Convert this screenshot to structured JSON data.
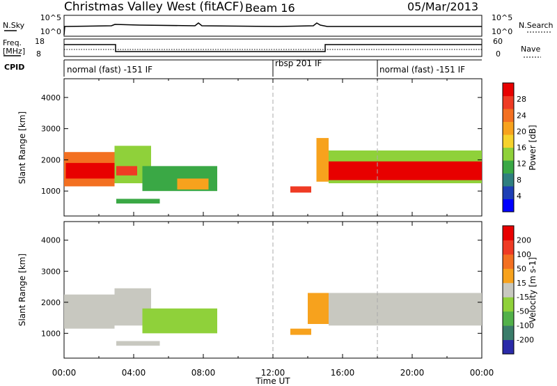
{
  "header": {
    "station": "Christmas Valley West (fitACF)",
    "beam": "Beam 16",
    "date": "05/Mar/2013"
  },
  "nsky": {
    "left_label": "N.Sky",
    "right_label": "N.Search",
    "left_ticks": [
      "10^5",
      "10^0"
    ],
    "right_ticks": [
      "10^5",
      "10^0"
    ]
  },
  "freq": {
    "left_label_1": "Freq.",
    "left_label_2": "[MHz]",
    "right_label": "Nave",
    "left_ticks": [
      "18",
      "8"
    ],
    "right_ticks": [
      "60",
      "0"
    ]
  },
  "cpid": {
    "label": "CPID",
    "segments": [
      {
        "start_hour": 0,
        "end_hour": 12,
        "text": "normal (fast) -151 IF"
      },
      {
        "start_hour": 12,
        "end_hour": 18,
        "text": "rbsp 201 IF"
      },
      {
        "start_hour": 18,
        "end_hour": 24,
        "text": "normal (fast) -151 IF"
      }
    ]
  },
  "chart_data": [
    {
      "type": "heatmap",
      "title": "Power",
      "ylabel": "Slant Range [km]",
      "xlabel": "Time UT",
      "xlim": [
        0,
        24
      ],
      "ylim": [
        200,
        4600
      ],
      "yticks": [
        1000,
        2000,
        3000,
        4000
      ],
      "xticks": [
        "00:00",
        "04:00",
        "08:00",
        "12:00",
        "16:00",
        "20:00",
        "00:00"
      ],
      "colorbar": {
        "label": "Power [dB]",
        "ticks": [
          "4",
          "8",
          "12",
          "16",
          "20",
          "24",
          "28"
        ],
        "range": [
          0,
          30
        ],
        "colors": [
          "#0000ff",
          "#1e3fb5",
          "#2f7f7f",
          "#3aa845",
          "#8fd13a",
          "#f6d22c",
          "#f7a21d",
          "#f37021",
          "#ef3b24",
          "#e80000"
        ]
      },
      "regions": [
        {
          "t0": 0.0,
          "t1": 2.9,
          "r0": 1150,
          "r1": 2250,
          "value": 22
        },
        {
          "t0": 0.1,
          "t1": 2.9,
          "r0": 1400,
          "r1": 1900,
          "value": 28
        },
        {
          "t0": 2.9,
          "t1": 5.0,
          "r0": 1250,
          "r1": 2450,
          "value": 12
        },
        {
          "t0": 3.0,
          "t1": 4.2,
          "r0": 1500,
          "r1": 1800,
          "value": 26
        },
        {
          "t0": 4.5,
          "t1": 8.8,
          "r0": 1000,
          "r1": 1800,
          "value": 10
        },
        {
          "t0": 6.5,
          "t1": 8.3,
          "r0": 1050,
          "r1": 1400,
          "value": 20
        },
        {
          "t0": 3.0,
          "t1": 5.5,
          "r0": 600,
          "r1": 750,
          "value": 10
        },
        {
          "t0": 13.0,
          "t1": 14.2,
          "r0": 950,
          "r1": 1150,
          "value": 26
        },
        {
          "t0": 14.5,
          "t1": 15.2,
          "r0": 1300,
          "r1": 2700,
          "value": 20
        },
        {
          "t0": 15.2,
          "t1": 24.0,
          "r0": 1250,
          "r1": 2300,
          "value": 12
        },
        {
          "t0": 15.2,
          "t1": 24.0,
          "r0": 1350,
          "r1": 1950,
          "value": 27
        }
      ]
    },
    {
      "type": "heatmap",
      "title": "Velocity",
      "ylabel": "Slant Range [km]",
      "xlabel": "Time UT",
      "xlim": [
        0,
        24
      ],
      "ylim": [
        200,
        4600
      ],
      "yticks": [
        1000,
        2000,
        3000,
        4000
      ],
      "xticks": [
        "00:00",
        "04:00",
        "08:00",
        "12:00",
        "16:00",
        "20:00",
        "00:00"
      ],
      "colorbar": {
        "label": "Velocity [m s-1]",
        "ticks": [
          "200",
          "100",
          "50",
          "15",
          "-15",
          "-50",
          "-100",
          "-200"
        ],
        "range": [
          -250,
          250
        ],
        "colors": [
          "#2a2aa8",
          "#3a7c6a",
          "#52b14a",
          "#8fd13a",
          "#c8c8c0",
          "#f7a21d",
          "#f37021",
          "#ef3b24",
          "#e80000"
        ]
      },
      "regions": [
        {
          "t0": 0.0,
          "t1": 2.9,
          "r0": 1150,
          "r1": 2250,
          "value": 0
        },
        {
          "t0": 2.9,
          "t1": 5.0,
          "r0": 1250,
          "r1": 2450,
          "value": 0
        },
        {
          "t0": 4.5,
          "t1": 8.8,
          "r0": 1000,
          "r1": 1800,
          "value": -40
        },
        {
          "t0": 3.0,
          "t1": 5.5,
          "r0": 600,
          "r1": 750,
          "value": 0
        },
        {
          "t0": 13.0,
          "t1": 14.2,
          "r0": 950,
          "r1": 1150,
          "value": 40
        },
        {
          "t0": 14.0,
          "t1": 15.2,
          "r0": 1300,
          "r1": 2300,
          "value": 40
        },
        {
          "t0": 15.2,
          "t1": 24.0,
          "r0": 1250,
          "r1": 2300,
          "value": 0
        }
      ]
    }
  ]
}
